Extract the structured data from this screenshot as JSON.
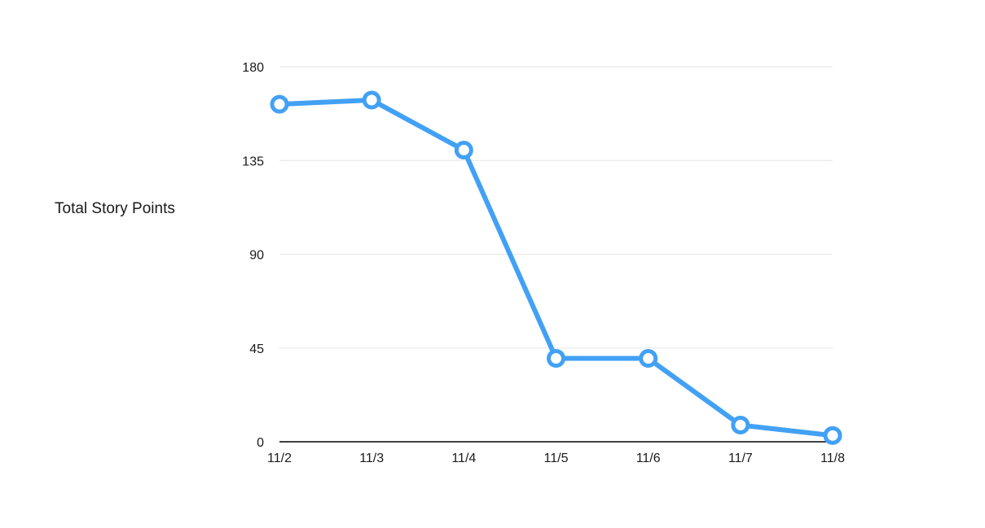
{
  "chart_data": {
    "type": "line",
    "title": "",
    "xlabel": "",
    "ylabel": "Total Story Points",
    "categories": [
      "11/2",
      "11/3",
      "11/4",
      "11/5",
      "11/6",
      "11/7",
      "11/8"
    ],
    "series": [
      {
        "values": [
          162,
          164,
          140,
          40,
          40,
          8,
          3
        ]
      }
    ],
    "ylim": [
      0,
      180
    ],
    "yticks": [
      "0",
      "45",
      "90",
      "135",
      "180"
    ],
    "grid": true,
    "legend": "none",
    "colors": {
      "line": "#42a1f5",
      "grid": "#e6e6e6",
      "axis": "#000000",
      "marker_fill": "#ffffff"
    }
  }
}
